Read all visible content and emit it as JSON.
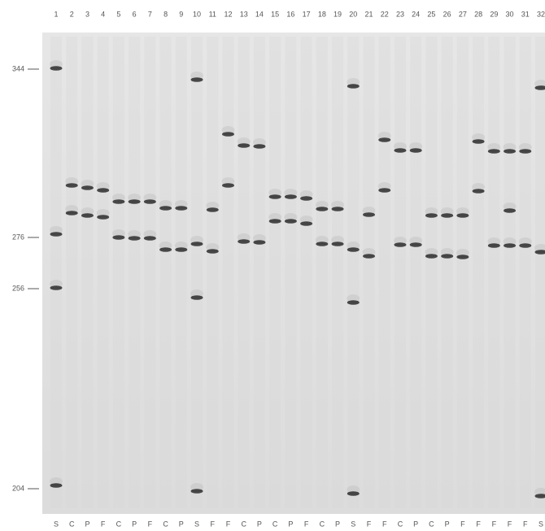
{
  "lanes": [
    {
      "number": "1",
      "label": "S"
    },
    {
      "number": "2",
      "label": "C"
    },
    {
      "number": "3",
      "label": "P"
    },
    {
      "number": "4",
      "label": "F"
    },
    {
      "number": "5",
      "label": "C"
    },
    {
      "number": "6",
      "label": "P"
    },
    {
      "number": "7",
      "label": "F"
    },
    {
      "number": "8",
      "label": "C"
    },
    {
      "number": "9",
      "label": "P"
    },
    {
      "number": "10",
      "label": "S"
    },
    {
      "number": "11",
      "label": "F"
    },
    {
      "number": "12",
      "label": "F"
    },
    {
      "number": "13",
      "label": "C"
    },
    {
      "number": "14",
      "label": "P"
    },
    {
      "number": "15",
      "label": "C"
    },
    {
      "number": "16",
      "label": "P"
    },
    {
      "number": "17",
      "label": "F"
    },
    {
      "number": "18",
      "label": "C"
    },
    {
      "number": "19",
      "label": "P"
    },
    {
      "number": "20",
      "label": "S"
    },
    {
      "number": "21",
      "label": "F"
    },
    {
      "number": "22",
      "label": "F"
    },
    {
      "number": "23",
      "label": "C"
    },
    {
      "number": "24",
      "label": "P"
    },
    {
      "number": "25",
      "label": "C"
    },
    {
      "number": "26",
      "label": "P"
    },
    {
      "number": "27",
      "label": "F"
    },
    {
      "number": "28",
      "label": "F"
    },
    {
      "number": "29",
      "label": "F"
    },
    {
      "number": "30",
      "label": "F"
    },
    {
      "number": "31",
      "label": "F"
    },
    {
      "number": "32",
      "label": "S"
    }
  ],
  "size_markers": [
    {
      "label": "344"
    },
    {
      "label": "276"
    },
    {
      "label": "256"
    },
    {
      "label": "204"
    }
  ]
}
